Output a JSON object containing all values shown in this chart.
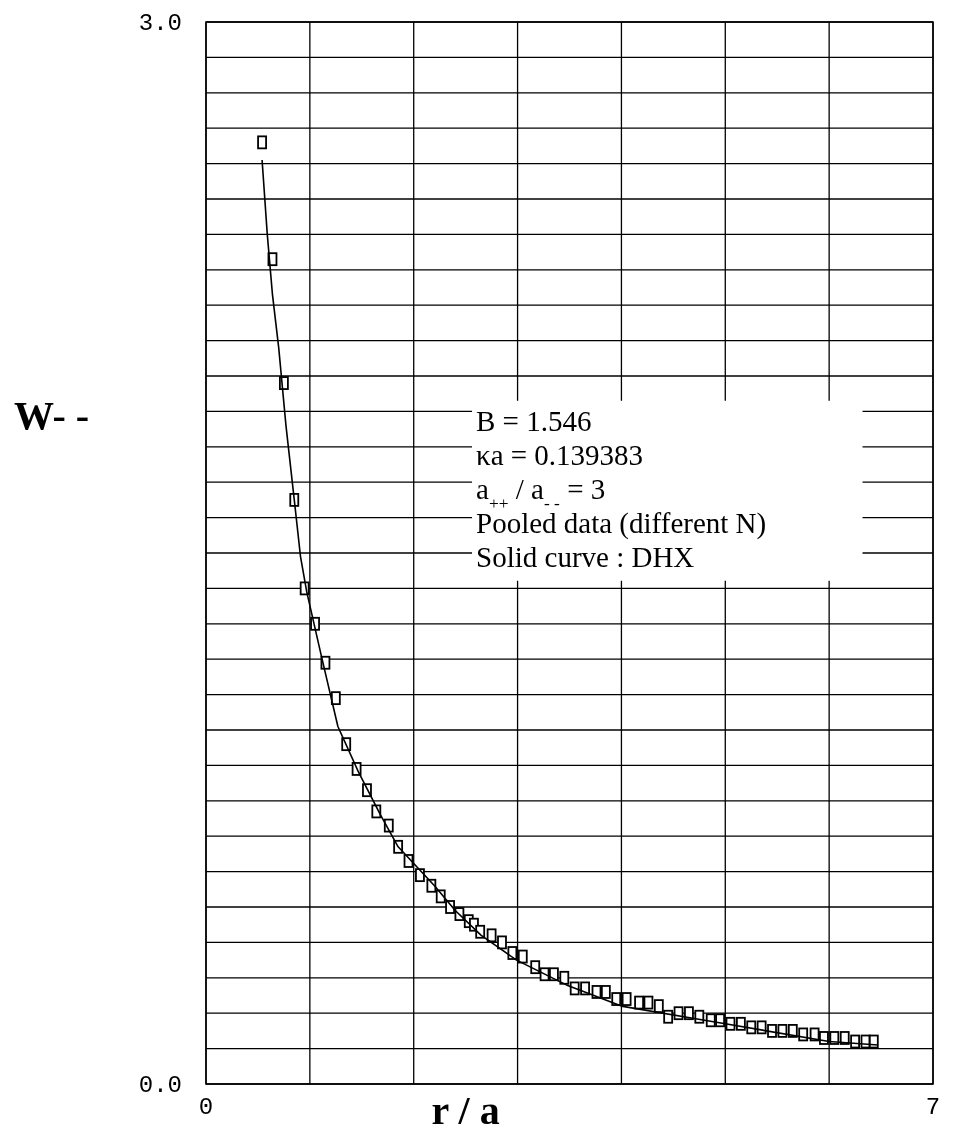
{
  "chart_data": {
    "type": "scatter",
    "xlabel": "r / a",
    "ylabel": "W- -",
    "xlim": [
      0,
      7
    ],
    "ylim": [
      0,
      3
    ],
    "xticks": [
      0,
      {
        "value": 1,
        "label": null
      },
      {
        "value": 2,
        "label": null
      },
      {
        "value": 3,
        "label": null
      },
      {
        "value": 4,
        "label": null
      },
      {
        "value": 5,
        "label": null
      },
      {
        "value": 6,
        "label": null
      },
      7
    ],
    "yticks": [
      {
        "value": 0,
        "label": "0.0"
      },
      {
        "value": 0.1,
        "label": null
      },
      {
        "value": 0.2,
        "label": null
      },
      {
        "value": 0.3,
        "label": null
      },
      {
        "value": 0.4,
        "label": null
      },
      {
        "value": 0.5,
        "label": null
      },
      {
        "value": 0.6,
        "label": null
      },
      {
        "value": 0.7,
        "label": null
      },
      {
        "value": 0.8,
        "label": null
      },
      {
        "value": 0.9,
        "label": null
      },
      {
        "value": 1.0,
        "label": null
      },
      {
        "value": 1.1,
        "label": null
      },
      {
        "value": 1.2,
        "label": null
      },
      {
        "value": 1.3,
        "label": null
      },
      {
        "value": 1.4,
        "label": null
      },
      {
        "value": 1.5,
        "label": null
      },
      {
        "value": 1.6,
        "label": null
      },
      {
        "value": 1.7,
        "label": null
      },
      {
        "value": 1.8,
        "label": null
      },
      {
        "value": 1.9,
        "label": null
      },
      {
        "value": 2.0,
        "label": null
      },
      {
        "value": 2.1,
        "label": null
      },
      {
        "value": 2.2,
        "label": null
      },
      {
        "value": 2.3,
        "label": null
      },
      {
        "value": 2.4,
        "label": null
      },
      {
        "value": 2.5,
        "label": null
      },
      {
        "value": 2.6,
        "label": null
      },
      {
        "value": 2.7,
        "label": null
      },
      {
        "value": 2.8,
        "label": null
      },
      {
        "value": 2.9,
        "label": null
      },
      {
        "value": 3.0,
        "label": "3.0"
      }
    ],
    "grid": true,
    "annotations": [
      "B = 1.546",
      "κa = 0.139383",
      "a$_{++}$ / a$_{- -}$ = 3",
      "Pooled data (different N)",
      "Solid curve : DHX"
    ],
    "series": [
      {
        "marker": "square",
        "color": "#000000",
        "x": [
          0.54,
          0.64,
          0.75,
          0.85,
          0.95,
          1.05,
          1.15,
          1.25,
          1.35,
          1.45,
          1.55,
          1.64,
          1.76,
          1.85,
          1.95,
          2.06,
          2.17,
          2.26,
          2.35,
          2.44,
          2.53,
          2.58,
          2.64,
          2.75,
          2.85,
          2.95,
          3.05,
          3.17,
          3.26,
          3.35,
          3.45,
          3.55,
          3.65,
          3.76,
          3.85,
          3.95,
          4.05,
          4.17,
          4.26,
          4.36,
          4.45,
          4.55,
          4.65,
          4.75,
          4.86,
          4.95,
          5.05,
          5.15,
          5.25,
          5.35,
          5.45,
          5.55,
          5.65,
          5.75,
          5.86,
          5.95,
          6.05,
          6.15,
          6.25,
          6.35,
          6.43
        ],
        "values": [
          2.66,
          2.33,
          1.98,
          1.65,
          1.4,
          1.3,
          1.19,
          1.09,
          0.96,
          0.89,
          0.83,
          0.77,
          0.73,
          0.67,
          0.63,
          0.59,
          0.56,
          0.53,
          0.5,
          0.48,
          0.46,
          0.45,
          0.43,
          0.42,
          0.4,
          0.37,
          0.36,
          0.33,
          0.31,
          0.31,
          0.3,
          0.27,
          0.27,
          0.26,
          0.26,
          0.24,
          0.24,
          0.23,
          0.23,
          0.22,
          0.19,
          0.2,
          0.2,
          0.19,
          0.18,
          0.18,
          0.17,
          0.17,
          0.16,
          0.16,
          0.15,
          0.15,
          0.15,
          0.14,
          0.14,
          0.13,
          0.13,
          0.13,
          0.12,
          0.12,
          0.12
        ]
      },
      {
        "type": "line",
        "marker": "none",
        "line_style": "solid",
        "color": "#000000",
        "x": [
          0.54,
          0.59,
          0.64,
          0.7,
          0.77,
          0.85,
          0.91,
          0.97,
          1.11,
          1.27,
          1.47,
          1.68,
          1.85,
          2.2,
          2.4,
          2.65,
          2.99,
          3.47,
          4.0,
          5.0,
          6.0,
          6.47
        ],
        "values": [
          2.61,
          2.4,
          2.23,
          2.08,
          1.86,
          1.65,
          1.49,
          1.39,
          1.21,
          1.01,
          0.88,
          0.76,
          0.67,
          0.56,
          0.49,
          0.42,
          0.35,
          0.28,
          0.22,
          0.17,
          0.12,
          0.11
        ]
      }
    ]
  }
}
